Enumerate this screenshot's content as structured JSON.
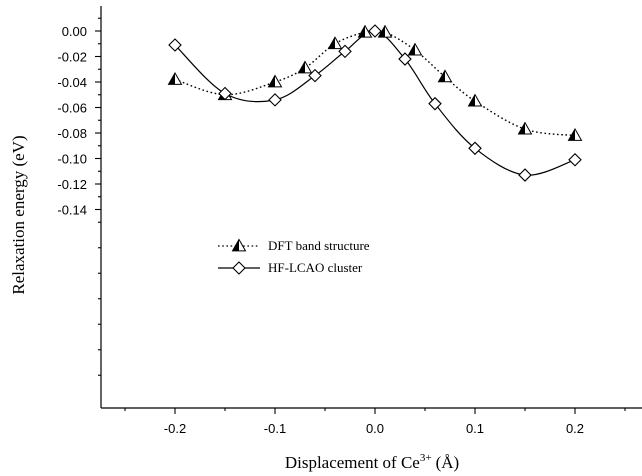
{
  "chart_data": {
    "type": "line",
    "xlabel": "Displacement of Ce",
    "xlabel_superscript": "3+",
    "xlabel_unit": "(Å)",
    "ylabel": "Relaxation energy (eV)",
    "xlim": [
      -0.25,
      0.25
    ],
    "ylim": [
      -0.15,
      0.01
    ],
    "x_ticks": [
      -0.2,
      -0.1,
      0.0,
      0.1,
      0.2
    ],
    "x_tick_labels": [
      "-0.2",
      "-0.1",
      "0.0",
      "0.1",
      "0.2"
    ],
    "y_ticks": [
      0.0,
      -0.02,
      -0.04,
      -0.06,
      -0.08,
      -0.1,
      -0.12,
      -0.14
    ],
    "y_tick_labels": [
      "0.00",
      "-0.02",
      "-0.04",
      "-0.06",
      "-0.08",
      "-0.10",
      "-0.12",
      "-0.14"
    ],
    "grid": false,
    "legend_position": "center-left",
    "series": [
      {
        "name": "DFT band structure",
        "marker": "half-filled-triangle",
        "line_style": "dotted",
        "color": "#000000",
        "x": [
          -0.2,
          -0.15,
          -0.1,
          -0.07,
          -0.04,
          -0.01,
          0.01,
          0.04,
          0.07,
          0.1,
          0.15,
          0.2
        ],
        "y": [
          -0.038,
          -0.05,
          -0.04,
          -0.029,
          -0.01,
          -0.001,
          -0.001,
          -0.015,
          -0.036,
          -0.055,
          -0.077,
          -0.082
        ]
      },
      {
        "name": "HF-LCAO cluster",
        "marker": "open-diamond",
        "line_style": "solid",
        "color": "#000000",
        "x": [
          -0.2,
          -0.15,
          -0.1,
          -0.06,
          -0.03,
          0.0,
          0.03,
          0.06,
          0.1,
          0.15,
          0.2
        ],
        "y": [
          -0.011,
          -0.049,
          -0.054,
          -0.035,
          -0.016,
          0.0,
          -0.022,
          -0.057,
          -0.092,
          -0.113,
          -0.101
        ]
      }
    ]
  }
}
